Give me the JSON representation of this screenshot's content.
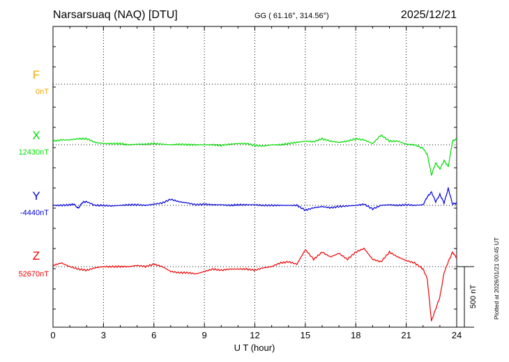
{
  "header": {
    "station": "Narsarsuaq (NAQ)  [DTU]",
    "coords": "GG ( 61.16°, 314.56°)",
    "date": "2025/12/21"
  },
  "side_note": "Plotted at 2026/01/21 00:45 UT",
  "scale_bar_label": "500 nT",
  "chart_data": {
    "type": "line",
    "title": "Narsarsuaq (NAQ)  [DTU]",
    "xlabel": "U T (hour)",
    "xlim": [
      0,
      24
    ],
    "xticks": [
      0,
      3,
      6,
      9,
      12,
      15,
      18,
      21,
      24
    ],
    "xtick_labels": [
      "0",
      "3",
      "6",
      "9",
      "12",
      "15",
      "18",
      "21",
      "24"
    ],
    "grid": "dotted vertical lines every 3 hours; dotted baseline per component",
    "scale_bar_nT": 500,
    "series": [
      {
        "name": "F",
        "baseline_label": "0nT",
        "baseline_nT": 0,
        "color": "#f0a800",
        "x": [],
        "values": []
      },
      {
        "name": "X",
        "baseline_label": "12430nT",
        "baseline_nT": 12430,
        "color": "#00dd00",
        "x": [
          0,
          0.5,
          1,
          1.5,
          2,
          2.5,
          3,
          3.5,
          4,
          4.5,
          5,
          5.5,
          6,
          6.5,
          7,
          7.5,
          8,
          8.5,
          9,
          9.5,
          10,
          10.5,
          11,
          11.5,
          12,
          12.5,
          13,
          13.5,
          14,
          14.5,
          15,
          15.5,
          16,
          16.5,
          17,
          17.5,
          18,
          18.5,
          19,
          19.5,
          20,
          20.5,
          21,
          21.5,
          22,
          22.25,
          22.5,
          22.75,
          23,
          23.25,
          23.5,
          23.75,
          24
        ],
        "values": [
          30,
          40,
          40,
          50,
          50,
          20,
          10,
          10,
          10,
          0,
          5,
          5,
          10,
          5,
          0,
          5,
          0,
          0,
          0,
          0,
          -5,
          5,
          10,
          10,
          -5,
          -10,
          0,
          0,
          10,
          20,
          30,
          25,
          50,
          30,
          20,
          30,
          50,
          40,
          10,
          80,
          30,
          30,
          5,
          0,
          -30,
          -80,
          -250,
          -150,
          -200,
          -130,
          -180,
          30,
          50
        ]
      },
      {
        "name": "Y",
        "baseline_label": "-4440nT",
        "baseline_nT": -4440,
        "color": "#0000dd",
        "x": [
          0,
          0.5,
          1,
          1.25,
          1.5,
          1.75,
          2,
          2.5,
          3,
          3.5,
          4,
          4.5,
          5,
          5.5,
          6,
          6.5,
          7,
          7.5,
          8,
          8.5,
          9,
          9.5,
          10,
          10.5,
          11,
          11.5,
          12,
          12.5,
          13,
          13.5,
          14,
          14.5,
          15,
          15.5,
          16,
          16.5,
          17,
          17.5,
          18,
          18.5,
          19,
          19.5,
          20,
          20.5,
          21,
          21.5,
          22,
          22.25,
          22.5,
          22.75,
          23,
          23.25,
          23.5,
          23.75,
          24
        ],
        "values": [
          0,
          0,
          5,
          10,
          -25,
          25,
          30,
          0,
          0,
          -5,
          0,
          5,
          5,
          0,
          10,
          20,
          50,
          30,
          20,
          5,
          10,
          5,
          5,
          0,
          5,
          5,
          5,
          0,
          0,
          0,
          0,
          0,
          -40,
          -20,
          -10,
          -20,
          -10,
          -5,
          0,
          10,
          -30,
          0,
          5,
          0,
          5,
          0,
          5,
          70,
          110,
          30,
          90,
          20,
          140,
          10,
          20
        ]
      },
      {
        "name": "Z",
        "baseline_label": "52670nT",
        "baseline_nT": 52670,
        "color": "#ee0000",
        "x": [
          0,
          0.5,
          1,
          1.5,
          2,
          2.5,
          3,
          3.5,
          4,
          4.5,
          5,
          5.5,
          6,
          6.5,
          7,
          7.5,
          8,
          8.5,
          9,
          9.5,
          10,
          10.5,
          11,
          11.5,
          12,
          12.5,
          13,
          13.5,
          14,
          14.5,
          15,
          15.5,
          16,
          16.5,
          17,
          17.5,
          18,
          18.5,
          19,
          19.5,
          20,
          20.5,
          21,
          21.5,
          22,
          22.25,
          22.5,
          22.75,
          23,
          23.25,
          23.5,
          23.75,
          24
        ],
        "values": [
          10,
          30,
          0,
          -20,
          -30,
          -10,
          0,
          0,
          0,
          0,
          10,
          0,
          20,
          0,
          -40,
          -50,
          -50,
          -60,
          -40,
          -20,
          -30,
          -20,
          -20,
          -20,
          -30,
          -10,
          0,
          30,
          40,
          20,
          140,
          60,
          120,
          80,
          110,
          60,
          120,
          150,
          60,
          40,
          120,
          80,
          50,
          30,
          -20,
          -100,
          -450,
          -350,
          -250,
          -50,
          40,
          120,
          70
        ]
      }
    ]
  }
}
